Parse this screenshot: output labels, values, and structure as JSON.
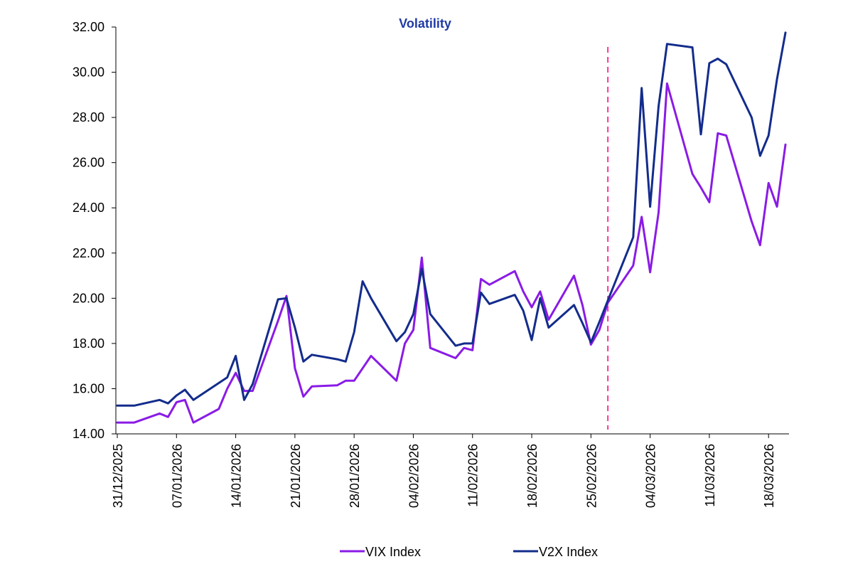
{
  "chart_data": {
    "type": "line",
    "title": "Volatility",
    "xlabel": "",
    "ylabel": "",
    "ylim": [
      14,
      32
    ],
    "yticks": [
      "14.00",
      "16.00",
      "18.00",
      "20.00",
      "22.00",
      "24.00",
      "26.00",
      "28.00",
      "30.00",
      "32.00"
    ],
    "xticks": [
      "31/12/2025",
      "07/01/2026",
      "14/01/2026",
      "21/01/2026",
      "28/01/2026",
      "04/02/2026",
      "11/02/2026",
      "18/02/2026",
      "25/02/2026",
      "04/03/2026",
      "11/03/2026",
      "18/03/2026"
    ],
    "grid": false,
    "legend_position": "bottom",
    "vline": {
      "x": "27/02/2026",
      "style": "dashed",
      "color": "#ff3399"
    },
    "x": [
      "31/12/2025",
      "01/01/2026",
      "02/01/2026",
      "05/01/2026",
      "06/01/2026",
      "07/01/2026",
      "08/01/2026",
      "09/01/2026",
      "12/01/2026",
      "13/01/2026",
      "14/01/2026",
      "15/01/2026",
      "16/01/2026",
      "19/01/2026",
      "20/01/2026",
      "21/01/2026",
      "22/01/2026",
      "23/01/2026",
      "26/01/2026",
      "27/01/2026",
      "28/01/2026",
      "29/01/2026",
      "30/01/2026",
      "02/02/2026",
      "03/02/2026",
      "04/02/2026",
      "05/02/2026",
      "06/02/2026",
      "09/02/2026",
      "10/02/2026",
      "11/02/2026",
      "12/02/2026",
      "13/02/2026",
      "16/02/2026",
      "17/02/2026",
      "18/02/2026",
      "19/02/2026",
      "20/02/2026",
      "23/02/2026",
      "24/02/2026",
      "25/02/2026",
      "26/02/2026",
      "27/02/2026",
      "02/03/2026",
      "03/03/2026",
      "04/03/2026",
      "05/03/2026",
      "06/03/2026",
      "09/03/2026",
      "10/03/2026",
      "11/03/2026",
      "12/03/2026",
      "13/03/2026",
      "16/03/2026",
      "17/03/2026",
      "18/03/2026",
      "19/03/2026",
      "20/03/2026"
    ],
    "series": [
      {
        "name": "VIX Index",
        "color": "#8a1be6",
        "values": [
          14.5,
          14.5,
          14.5,
          14.9,
          14.75,
          15.4,
          15.5,
          14.5,
          15.1,
          16.0,
          16.7,
          15.9,
          15.9,
          19.0,
          20.1,
          16.9,
          15.65,
          16.1,
          16.15,
          16.35,
          16.35,
          16.9,
          17.45,
          16.35,
          18.0,
          18.6,
          21.8,
          17.8,
          17.35,
          17.8,
          17.7,
          20.85,
          20.6,
          21.2,
          20.3,
          19.6,
          20.3,
          19.05,
          21.0,
          19.7,
          17.95,
          18.6,
          19.8,
          21.45,
          23.6,
          21.15,
          23.8,
          29.5,
          25.5,
          24.9,
          24.25,
          27.3,
          27.2,
          23.4,
          22.35,
          25.1,
          24.05,
          26.8
        ]
      },
      {
        "name": "V2X Index",
        "color": "#132c8c",
        "values": [
          15.25,
          15.25,
          15.25,
          15.5,
          15.35,
          15.7,
          15.95,
          15.5,
          16.25,
          16.5,
          17.45,
          15.5,
          16.2,
          19.95,
          20.0,
          18.7,
          17.2,
          17.5,
          17.3,
          17.2,
          18.5,
          20.75,
          20.0,
          18.1,
          18.5,
          19.3,
          21.3,
          19.3,
          17.9,
          18.0,
          18.0,
          20.25,
          19.75,
          20.15,
          19.45,
          18.15,
          20.0,
          18.7,
          19.7,
          18.9,
          18.05,
          18.95,
          19.9,
          22.7,
          29.3,
          24.05,
          28.5,
          31.25,
          31.1,
          27.25,
          30.4,
          30.6,
          30.35,
          28.0,
          26.3,
          27.2,
          29.7,
          31.75
        ]
      }
    ]
  }
}
